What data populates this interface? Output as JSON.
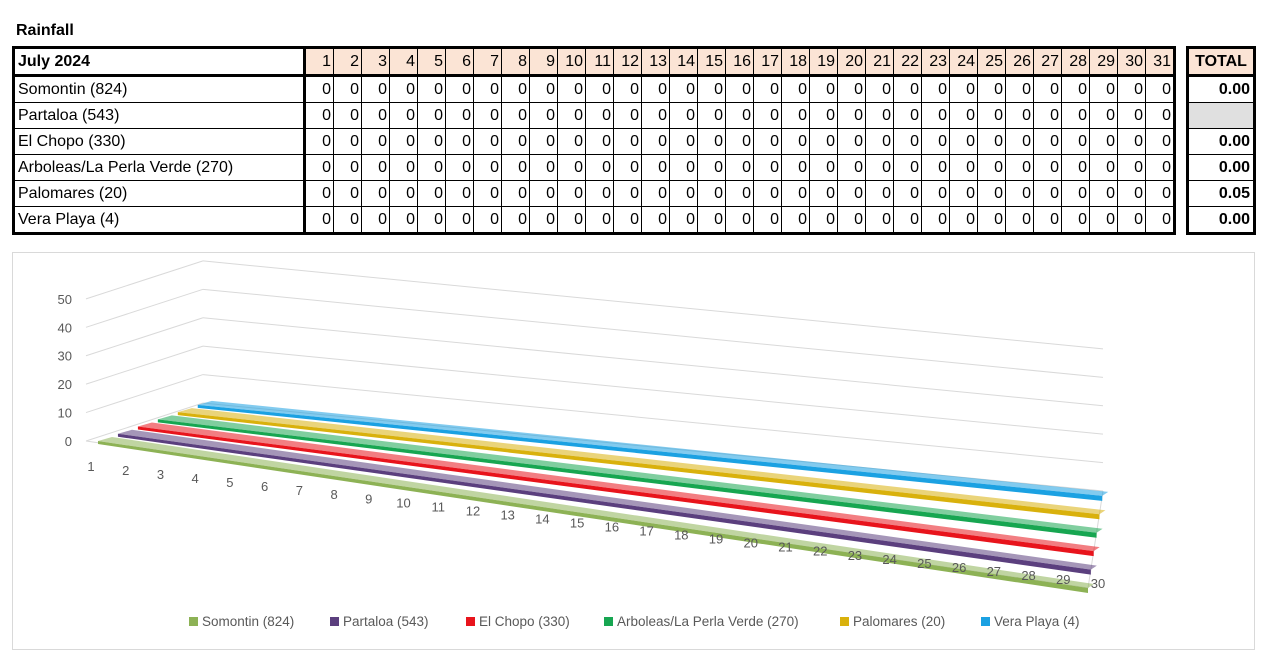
{
  "sheet": {
    "title": "Rainfall",
    "month_label": "July 2024",
    "total_label": "TOTAL",
    "days": [
      "1",
      "2",
      "3",
      "4",
      "5",
      "6",
      "7",
      "8",
      "9",
      "10",
      "11",
      "12",
      "13",
      "14",
      "15",
      "16",
      "17",
      "18",
      "19",
      "20",
      "21",
      "22",
      "23",
      "24",
      "25",
      "26",
      "27",
      "28",
      "29",
      "30",
      "31"
    ],
    "rows": [
      {
        "name": "Somontin (824)",
        "values": [
          "0",
          "0",
          "0",
          "0",
          "0",
          "0",
          "0",
          "0",
          "0",
          "0",
          "0",
          "0",
          "0",
          "0",
          "0",
          "0",
          "0",
          "0",
          "0",
          "0",
          "0",
          "0",
          "0",
          "0",
          "0",
          "0",
          "0",
          "0",
          "0",
          "0",
          "0"
        ],
        "total": "0.00"
      },
      {
        "name": "Partaloa (543)",
        "values": [
          "0",
          "0",
          "0",
          "0",
          "0",
          "0",
          "0",
          "0",
          "0",
          "0",
          "0",
          "0",
          "0",
          "0",
          "0",
          "0",
          "0",
          "0",
          "0",
          "0",
          "0",
          "0",
          "0",
          "0",
          "0",
          "0",
          "0",
          "0",
          "0",
          "0",
          "0"
        ],
        "total": ""
      },
      {
        "name": "El Chopo (330)",
        "values": [
          "0",
          "0",
          "0",
          "0",
          "0",
          "0",
          "0",
          "0",
          "0",
          "0",
          "0",
          "0",
          "0",
          "0",
          "0",
          "0",
          "0",
          "0",
          "0",
          "0",
          "0",
          "0",
          "0",
          "0",
          "0",
          "0",
          "0",
          "0",
          "0",
          "0",
          "0"
        ],
        "total": "0.00"
      },
      {
        "name": "Arboleas/La Perla Verde (270)",
        "values": [
          "0",
          "0",
          "0",
          "0",
          "0",
          "0",
          "0",
          "0",
          "0",
          "0",
          "0",
          "0",
          "0",
          "0",
          "0",
          "0",
          "0",
          "0",
          "0",
          "0",
          "0",
          "0",
          "0",
          "0",
          "0",
          "0",
          "0",
          "0",
          "0",
          "0",
          "0"
        ],
        "total": "0.00"
      },
      {
        "name": "Palomares (20)",
        "values": [
          "0",
          "0",
          "0",
          "0",
          "0",
          "0",
          "0",
          "0",
          "0",
          "0",
          "0",
          "0",
          "0",
          "0",
          "0",
          "0",
          "0",
          "0",
          "0",
          "0",
          "0",
          "0",
          "0",
          "0",
          "0",
          "0",
          "0",
          "0",
          "0",
          "0",
          "0"
        ],
        "total": "0.05"
      },
      {
        "name": "Vera Playa (4)",
        "values": [
          "0",
          "0",
          "0",
          "0",
          "0",
          "0",
          "0",
          "0",
          "0",
          "0",
          "0",
          "0",
          "0",
          "0",
          "0",
          "0",
          "0",
          "0",
          "0",
          "0",
          "0",
          "0",
          "0",
          "0",
          "0",
          "0",
          "0",
          "0",
          "0",
          "0",
          "0"
        ],
        "total": "0.00"
      }
    ]
  },
  "chart_data": {
    "type": "line",
    "title": "",
    "xlabel": "",
    "ylabel": "",
    "x": [
      1,
      2,
      3,
      4,
      5,
      6,
      7,
      8,
      9,
      10,
      11,
      12,
      13,
      14,
      15,
      16,
      17,
      18,
      19,
      20,
      21,
      22,
      23,
      24,
      25,
      26,
      27,
      28,
      29,
      30
    ],
    "ylim": [
      0,
      50
    ],
    "yticks": [
      0,
      10,
      20,
      30,
      40,
      50
    ],
    "grid": true,
    "legend_position": "bottom",
    "series": [
      {
        "name": "Somontin (824)",
        "color": "#8db255",
        "values": [
          0,
          0,
          0,
          0,
          0,
          0,
          0,
          0,
          0,
          0,
          0,
          0,
          0,
          0,
          0,
          0,
          0,
          0,
          0,
          0,
          0,
          0,
          0,
          0,
          0,
          0,
          0,
          0,
          0,
          0
        ]
      },
      {
        "name": "Partaloa (543)",
        "color": "#5b3f7e",
        "values": [
          0,
          0,
          0,
          0,
          0,
          0,
          0,
          0,
          0,
          0,
          0,
          0,
          0,
          0,
          0,
          0,
          0,
          0,
          0,
          0,
          0,
          0,
          0,
          0,
          0,
          0,
          0,
          0,
          0,
          0
        ]
      },
      {
        "name": "El Chopo (330)",
        "color": "#e8141c",
        "values": [
          0,
          0,
          0,
          0,
          0,
          0,
          0,
          0,
          0,
          0,
          0,
          0,
          0,
          0,
          0,
          0,
          0,
          0,
          0,
          0,
          0,
          0,
          0,
          0,
          0,
          0,
          0,
          0,
          0,
          0
        ]
      },
      {
        "name": "Arboleas/La Perla Verde (270)",
        "color": "#17a651",
        "values": [
          0,
          0,
          0,
          0,
          0,
          0,
          0,
          0,
          0,
          0,
          0,
          0,
          0,
          0,
          0,
          0,
          0,
          0,
          0,
          0,
          0,
          0,
          0,
          0,
          0,
          0,
          0,
          0,
          0,
          0
        ]
      },
      {
        "name": "Palomares (20)",
        "color": "#d9b10c",
        "values": [
          0,
          0,
          0,
          0,
          0,
          0,
          0,
          0,
          0,
          0,
          0,
          0,
          0,
          0,
          0,
          0,
          0,
          0,
          0,
          0,
          0,
          0,
          0,
          0,
          0,
          0,
          0,
          0,
          0,
          0
        ]
      },
      {
        "name": "Vera Playa (4)",
        "color": "#1ba1e2",
        "values": [
          0,
          0,
          0,
          0,
          0,
          0,
          0,
          0,
          0,
          0,
          0,
          0,
          0,
          0,
          0,
          0,
          0,
          0,
          0,
          0,
          0,
          0,
          0,
          0,
          0,
          0,
          0,
          0,
          0,
          0
        ]
      }
    ]
  }
}
